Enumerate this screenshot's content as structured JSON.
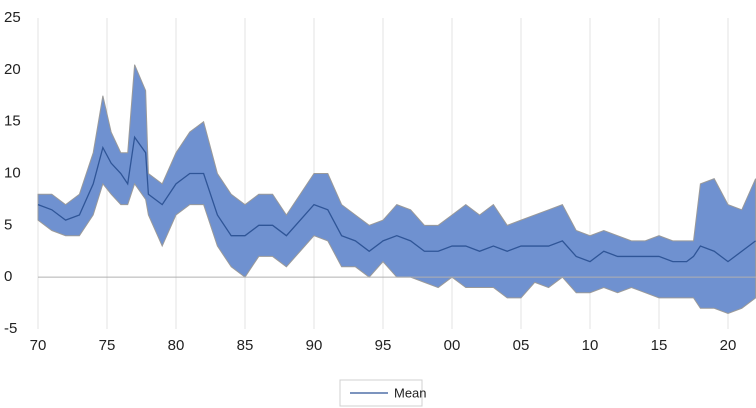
{
  "chart_data": {
    "type": "band",
    "x": [
      1970,
      1971,
      1972,
      1973,
      1974,
      1974.7,
      1975.3,
      1976,
      1976.5,
      1977,
      1977.8,
      1978,
      1979,
      1980,
      1981,
      1982,
      1983,
      1984,
      1985,
      1986,
      1987,
      1988,
      1989,
      1990,
      1991,
      1992,
      1993,
      1994,
      1995,
      1996,
      1997,
      1998,
      1999,
      2000,
      2001,
      2002,
      2003,
      2004,
      2005,
      2006,
      2007,
      2008,
      2009,
      2010,
      2011,
      2012,
      2013,
      2014,
      2015,
      2016,
      2017,
      2017.5,
      2018,
      2019,
      2020,
      2021,
      2022
    ],
    "band": {
      "color": "#6f91d0",
      "edge": "#9a9a9a",
      "upper": [
        8,
        8,
        7,
        8,
        12,
        17.5,
        14,
        12,
        12,
        20.5,
        18,
        10,
        9,
        12,
        14,
        15,
        10,
        8,
        7,
        8,
        8,
        6,
        8,
        10,
        10,
        7,
        6,
        5,
        5.5,
        7,
        6.5,
        5,
        5,
        6,
        7,
        6,
        7,
        5,
        5.5,
        6,
        6.5,
        7,
        4.5,
        4,
        4.5,
        4,
        3.5,
        3.5,
        4,
        3.5,
        3.5,
        3.5,
        9,
        9.5,
        7,
        6.5,
        9.5
      ],
      "lower": [
        5.5,
        4.5,
        4,
        4,
        6,
        9,
        8,
        7,
        7,
        9,
        7.5,
        6,
        3,
        6,
        7,
        7,
        3,
        1,
        0,
        2,
        2,
        1,
        2.5,
        4,
        3.5,
        1,
        1,
        0,
        1.5,
        0,
        0,
        -0.5,
        -1,
        0,
        -1,
        -1,
        -1,
        -2,
        -2,
        -0.5,
        -1,
        0,
        -1.5,
        -1.5,
        -1,
        -1.5,
        -1,
        -1.5,
        -2,
        -2,
        -2,
        -2,
        -3,
        -3,
        -3.5,
        -3,
        -2
      ]
    },
    "series": [
      {
        "name": "Mean",
        "color": "#2f5597",
        "values": [
          7,
          6.5,
          5.5,
          6,
          9,
          12.5,
          11,
          10,
          9,
          13.5,
          12,
          8,
          7,
          9,
          10,
          10,
          6,
          4,
          4,
          5,
          5,
          4,
          5.5,
          7,
          6.5,
          4,
          3.5,
          2.5,
          3.5,
          4,
          3.5,
          2.5,
          2.5,
          3,
          3,
          2.5,
          3,
          2.5,
          3,
          3,
          3,
          3.5,
          2,
          1.5,
          2.5,
          2,
          2,
          2,
          2,
          1.5,
          1.5,
          2,
          3,
          2.5,
          1.5,
          2.5,
          3.5
        ]
      }
    ],
    "xlim": [
      1970,
      2022
    ],
    "xticks": [
      {
        "value": 1970,
        "label": "70"
      },
      {
        "value": 1975,
        "label": "75"
      },
      {
        "value": 1980,
        "label": "80"
      },
      {
        "value": 1985,
        "label": "85"
      },
      {
        "value": 1990,
        "label": "90"
      },
      {
        "value": 1995,
        "label": "95"
      },
      {
        "value": 2000,
        "label": "00"
      },
      {
        "value": 2005,
        "label": "05"
      },
      {
        "value": 2010,
        "label": "10"
      },
      {
        "value": 2015,
        "label": "15"
      },
      {
        "value": 2020,
        "label": "20"
      }
    ],
    "ylim": [
      -5,
      25
    ],
    "yticks": [
      -5,
      0,
      5,
      10,
      15,
      20,
      25
    ],
    "grid": true,
    "legend": "bottom"
  }
}
